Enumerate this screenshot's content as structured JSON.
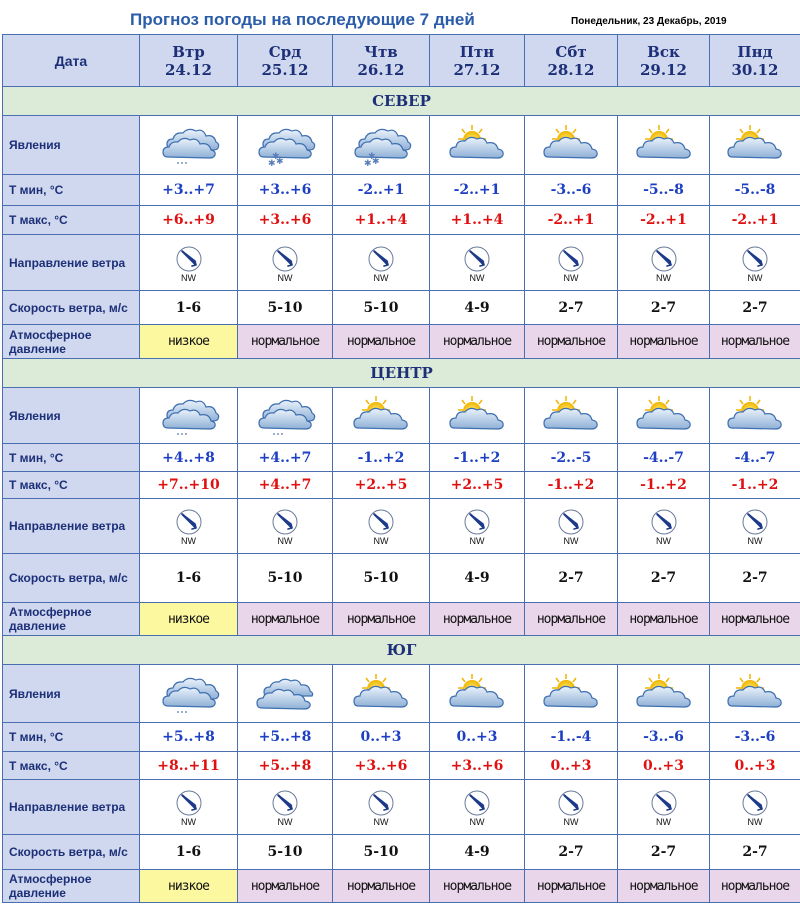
{
  "title": "Прогноз погоды на последующие 7 дней",
  "date": "Понедельник, 23 Декабрь, 2019",
  "labels": {
    "date": "Дата",
    "phenomena": "Явления",
    "tmin": "Т мин, °С",
    "tmax": "Т макс, °С",
    "wind_dir": "Направление ветра",
    "wind_speed": "Скорость ветра, м/с",
    "pressure": "Атмосферное давление"
  },
  "days": [
    {
      "dow": "Втр",
      "date": "24.12"
    },
    {
      "dow": "Срд",
      "date": "25.12"
    },
    {
      "dow": "Чтв",
      "date": "26.12"
    },
    {
      "dow": "Птн",
      "date": "27.12"
    },
    {
      "dow": "Сбт",
      "date": "28.12"
    },
    {
      "dow": "Вск",
      "date": "29.12"
    },
    {
      "dow": "Пнд",
      "date": "30.12"
    }
  ],
  "colors": {
    "tmin": "#1c3fc4",
    "tmax": "#e01010",
    "header_bg": "#cfd8ee",
    "region_bg": "#dcebd8",
    "pressure_low": "#fbf8a0",
    "pressure_normal": "#ead6ea"
  },
  "regions": [
    {
      "name": "СЕВЕР",
      "row_heights": [
        59,
        31,
        29,
        56,
        34,
        34
      ],
      "icons": [
        "cloud-snow-light-icon",
        "cloud-snow-icon",
        "cloud-snow-icon",
        "sun-cloud-icon",
        "sun-cloud-icon",
        "sun-cloud-icon",
        "sun-cloud-icon"
      ],
      "tmin": [
        "+3..+7",
        "+3..+6",
        "-2..+1",
        "-2..+1",
        "-3..-6",
        "-5..-8",
        "-5..-8"
      ],
      "tmax": [
        "+6..+9",
        "+3..+6",
        "+1..+4",
        "+1..+4",
        "-2..+1",
        "-2..+1",
        "-2..+1"
      ],
      "wind_dir": [
        "NW",
        "NW",
        "NW",
        "NW",
        "NW",
        "NW",
        "NW"
      ],
      "wind_speed": [
        "1-6",
        "5-10",
        "5-10",
        "4-9",
        "2-7",
        "2-7",
        "2-7"
      ],
      "pressure": [
        {
          "text": "низкое",
          "level": "low"
        },
        {
          "text": "нормальное",
          "level": "normal"
        },
        {
          "text": "нормальное",
          "level": "normal"
        },
        {
          "text": "нормальное",
          "level": "normal"
        },
        {
          "text": "нормальное",
          "level": "normal"
        },
        {
          "text": "нормальное",
          "level": "normal"
        },
        {
          "text": "нормальное",
          "level": "normal"
        }
      ]
    },
    {
      "name": "ЦЕНТР",
      "row_heights": [
        56,
        28,
        27,
        55,
        49,
        33
      ],
      "icons": [
        "cloud-snow-light-icon",
        "cloud-snow-light-icon",
        "sun-cloud-icon",
        "sun-cloud-icon",
        "sun-cloud-icon",
        "sun-cloud-icon",
        "sun-cloud-icon"
      ],
      "tmin": [
        "+4..+8",
        "+4..+7",
        "-1..+2",
        "-1..+2",
        "-2..-5",
        "-4..-7",
        "-4..-7"
      ],
      "tmax": [
        "+7..+10",
        "+4..+7",
        "+2..+5",
        "+2..+5",
        "-1..+2",
        "-1..+2",
        "-1..+2"
      ],
      "wind_dir": [
        "NW",
        "NW",
        "NW",
        "NW",
        "NW",
        "NW",
        "NW"
      ],
      "wind_speed": [
        "1-6",
        "5-10",
        "5-10",
        "4-9",
        "2-7",
        "2-7",
        "2-7"
      ],
      "pressure": [
        {
          "text": "низкое",
          "level": "low"
        },
        {
          "text": "нормальное",
          "level": "normal"
        },
        {
          "text": "нормальное",
          "level": "normal"
        },
        {
          "text": "нормальное",
          "level": "normal"
        },
        {
          "text": "нормальное",
          "level": "normal"
        },
        {
          "text": "нормальное",
          "level": "normal"
        },
        {
          "text": "нормальное",
          "level": "normal"
        }
      ]
    },
    {
      "name": "ЮГ",
      "row_heights": [
        58,
        29,
        28,
        55,
        35,
        33
      ],
      "icons": [
        "cloud-snow-light-icon",
        "clouds-icon",
        "sun-cloud-icon",
        "sun-cloud-icon",
        "sun-cloud-icon",
        "sun-cloud-icon",
        "sun-cloud-icon"
      ],
      "tmin": [
        "+5..+8",
        "+5..+8",
        "0..+3",
        "0..+3",
        "-1..-4",
        "-3..-6",
        "-3..-6"
      ],
      "tmax": [
        "+8..+11",
        "+5..+8",
        "+3..+6",
        "+3..+6",
        "0..+3",
        "0..+3",
        "0..+3"
      ],
      "wind_dir": [
        "NW",
        "NW",
        "NW",
        "NW",
        "NW",
        "NW",
        "NW"
      ],
      "wind_speed": [
        "1-6",
        "5-10",
        "5-10",
        "4-9",
        "2-7",
        "2-7",
        "2-7"
      ],
      "pressure": [
        {
          "text": "низкое",
          "level": "low"
        },
        {
          "text": "нормальное",
          "level": "normal"
        },
        {
          "text": "нормальное",
          "level": "normal"
        },
        {
          "text": "нормальное",
          "level": "normal"
        },
        {
          "text": "нормальное",
          "level": "normal"
        },
        {
          "text": "нормальное",
          "level": "normal"
        },
        {
          "text": "нормальное",
          "level": "normal"
        }
      ]
    }
  ]
}
